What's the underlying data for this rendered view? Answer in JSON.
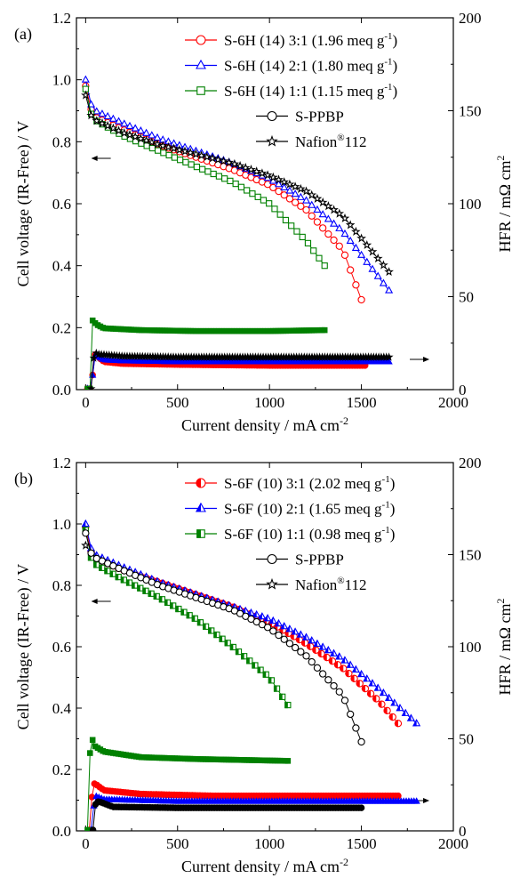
{
  "chart_data": [
    {
      "type": "line",
      "panel_label": "(a)",
      "xlabel": "Current density / mA cm",
      "xlabel_sup": "-2",
      "ylabel_left": "Cell voltage (IR-Free) / V",
      "ylabel_right": "HFR / mΩ cm",
      "ylabel_right_sup": "2",
      "xlim": [
        -50,
        2000
      ],
      "ylim_left": [
        0,
        1.2
      ],
      "ylim_right": [
        0,
        200
      ],
      "xticks": [
        "0",
        "500",
        "1000",
        "1500",
        "2000"
      ],
      "yticks_left": [
        "0.0",
        "0.2",
        "0.4",
        "0.6",
        "0.8",
        "1.0",
        "1.2"
      ],
      "yticks_right": [
        "0",
        "50",
        "100",
        "150",
        "200"
      ],
      "legend_position": "top-right",
      "series": [
        {
          "name": "S-6H (14) 3:1  (1.96 meq g",
          "name_sup": "-1",
          "name_end": ")",
          "color": "#ff0000",
          "marker": "circle-open",
          "polarization": [
            [
              0,
              0.98
            ],
            [
              10,
              0.93
            ],
            [
              50,
              0.88
            ],
            [
              200,
              0.84
            ],
            [
              400,
              0.79
            ],
            [
              600,
              0.75
            ],
            [
              800,
              0.71
            ],
            [
              1000,
              0.66
            ],
            [
              1200,
              0.58
            ],
            [
              1400,
              0.45
            ],
            [
              1500,
              0.29
            ]
          ],
          "hfr": [
            [
              10,
              0.5
            ],
            [
              30,
              0.5
            ],
            [
              50,
              19
            ],
            [
              100,
              15
            ],
            [
              200,
              14
            ],
            [
              500,
              13.5
            ],
            [
              1000,
              13
            ],
            [
              1520,
              13
            ]
          ]
        },
        {
          "name": "S-6H (14) 2:1  (1.80 meq g",
          "name_sup": "-1",
          "name_end": ")",
          "color": "#0000ff",
          "marker": "triangle-open",
          "polarization": [
            [
              0,
              1.0
            ],
            [
              10,
              0.94
            ],
            [
              50,
              0.9
            ],
            [
              200,
              0.86
            ],
            [
              400,
              0.81
            ],
            [
              600,
              0.77
            ],
            [
              800,
              0.73
            ],
            [
              1000,
              0.68
            ],
            [
              1200,
              0.61
            ],
            [
              1400,
              0.51
            ],
            [
              1650,
              0.32
            ]
          ],
          "hfr": [
            [
              10,
              0.5
            ],
            [
              30,
              0.5
            ],
            [
              50,
              18.5
            ],
            [
              100,
              16
            ],
            [
              200,
              15.5
            ],
            [
              500,
              15
            ],
            [
              1000,
              15
            ],
            [
              1650,
              15
            ]
          ]
        },
        {
          "name": "S-6H (14) 1:1  (1.15 meq g",
          "name_sup": "-1",
          "name_end": ")",
          "color": "#008000",
          "marker": "square-open",
          "polarization": [
            [
              0,
              0.97
            ],
            [
              10,
              0.91
            ],
            [
              50,
              0.87
            ],
            [
              200,
              0.82
            ],
            [
              400,
              0.77
            ],
            [
              600,
              0.72
            ],
            [
              800,
              0.67
            ],
            [
              1000,
              0.6
            ],
            [
              1200,
              0.48
            ],
            [
              1300,
              0.4
            ]
          ],
          "hfr": [
            [
              10,
              0.5
            ],
            [
              25,
              0.5
            ],
            [
              30,
              38
            ],
            [
              60,
              35
            ],
            [
              100,
              33
            ],
            [
              300,
              32
            ],
            [
              600,
              31.5
            ],
            [
              1000,
              31.5
            ],
            [
              1300,
              32
            ]
          ]
        },
        {
          "name": "S-PPBP",
          "color": "#000000",
          "marker": "circle-open",
          "polarization": [],
          "hfr": []
        },
        {
          "name": "Nafion",
          "name_sup": "®",
          "name_end": "112",
          "color": "#000000",
          "marker": "star-open",
          "polarization": [
            [
              0,
              0.95
            ],
            [
              10,
              0.9
            ],
            [
              50,
              0.87
            ],
            [
              200,
              0.83
            ],
            [
              400,
              0.79
            ],
            [
              600,
              0.76
            ],
            [
              800,
              0.73
            ],
            [
              1000,
              0.69
            ],
            [
              1200,
              0.64
            ],
            [
              1400,
              0.56
            ],
            [
              1650,
              0.38
            ]
          ],
          "hfr": [
            [
              30,
              0.5
            ],
            [
              40,
              15
            ],
            [
              50,
              20
            ],
            [
              70,
              19
            ],
            [
              200,
              18
            ],
            [
              500,
              17.5
            ],
            [
              1000,
              17.5
            ],
            [
              1650,
              17.5
            ]
          ]
        }
      ]
    },
    {
      "type": "line",
      "panel_label": "(b)",
      "xlabel": "Current density / mA cm",
      "xlabel_sup": "-2",
      "ylabel_left": "Cell voltage (IR-Free) / V",
      "ylabel_right": "HFR / mΩ cm",
      "ylabel_right_sup": "2",
      "xlim": [
        -50,
        2000
      ],
      "ylim_left": [
        0,
        1.2
      ],
      "ylim_right": [
        0,
        200
      ],
      "xticks": [
        "0",
        "500",
        "1000",
        "1500",
        "2000"
      ],
      "yticks_left": [
        "0.0",
        "0.2",
        "0.4",
        "0.6",
        "0.8",
        "1.0",
        "1.2"
      ],
      "yticks_right": [
        "0",
        "50",
        "100",
        "150",
        "200"
      ],
      "legend_position": "top-right",
      "series": [
        {
          "name": "S-6F (10) 3:1  (2.02 meq g",
          "name_sup": "-1",
          "name_end": ")",
          "color": "#ff0000",
          "marker": "circle-half",
          "polarization": [
            [
              0,
              0.99
            ],
            [
              10,
              0.93
            ],
            [
              50,
              0.89
            ],
            [
              200,
              0.85
            ],
            [
              400,
              0.81
            ],
            [
              600,
              0.77
            ],
            [
              800,
              0.73
            ],
            [
              1000,
              0.68
            ],
            [
              1200,
              0.61
            ],
            [
              1400,
              0.53
            ],
            [
              1600,
              0.42
            ],
            [
              1700,
              0.35
            ]
          ],
          "hfr": [
            [
              20,
              0.5
            ],
            [
              40,
              26
            ],
            [
              60,
              25
            ],
            [
              100,
              22
            ],
            [
              300,
              20
            ],
            [
              700,
              19
            ],
            [
              1200,
              19
            ],
            [
              1700,
              19
            ]
          ]
        },
        {
          "name": "S-6F (10) 2:1  (1.65 meq g",
          "name_sup": "-1",
          "name_end": ")",
          "color": "#0000ff",
          "marker": "triangle-half",
          "polarization": [
            [
              0,
              1.0
            ],
            [
              10,
              0.94
            ],
            [
              50,
              0.9
            ],
            [
              200,
              0.86
            ],
            [
              400,
              0.81
            ],
            [
              600,
              0.77
            ],
            [
              800,
              0.73
            ],
            [
              1000,
              0.69
            ],
            [
              1200,
              0.63
            ],
            [
              1400,
              0.56
            ],
            [
              1600,
              0.46
            ],
            [
              1800,
              0.35
            ]
          ],
          "hfr": [
            [
              30,
              0.5
            ],
            [
              50,
              19
            ],
            [
              100,
              17
            ],
            [
              500,
              16
            ],
            [
              1000,
              16
            ],
            [
              1800,
              16
            ]
          ]
        },
        {
          "name": "S-6F (10) 1:1  (0.98 meq g",
          "name_sup": "-1",
          "name_end": ")",
          "color": "#008000",
          "marker": "square-half",
          "polarization": [
            [
              0,
              0.98
            ],
            [
              10,
              0.91
            ],
            [
              50,
              0.87
            ],
            [
              200,
              0.82
            ],
            [
              400,
              0.76
            ],
            [
              600,
              0.69
            ],
            [
              800,
              0.6
            ],
            [
              1000,
              0.5
            ],
            [
              1100,
              0.41
            ]
          ],
          "hfr": [
            [
              10,
              0.5
            ],
            [
              20,
              0.5
            ],
            [
              25,
              53
            ],
            [
              50,
              46
            ],
            [
              100,
              43
            ],
            [
              300,
              40
            ],
            [
              600,
              39
            ],
            [
              1100,
              38
            ]
          ]
        },
        {
          "name": "S-PPBP",
          "color": "#000000",
          "marker": "circle-open",
          "polarization": [
            [
              0,
              0.97
            ],
            [
              10,
              0.92
            ],
            [
              50,
              0.89
            ],
            [
              200,
              0.85
            ],
            [
              400,
              0.8
            ],
            [
              600,
              0.76
            ],
            [
              800,
              0.72
            ],
            [
              1000,
              0.66
            ],
            [
              1200,
              0.57
            ],
            [
              1400,
              0.44
            ],
            [
              1500,
              0.29
            ]
          ],
          "hfr": [
            [
              40,
              0.5
            ],
            [
              50,
              14
            ],
            [
              70,
              16
            ],
            [
              150,
              13
            ],
            [
              500,
              12.5
            ],
            [
              1000,
              12.5
            ],
            [
              1500,
              12.5
            ]
          ]
        },
        {
          "name": "Nafion",
          "name_sup": "®",
          "name_end": "112",
          "color": "#000000",
          "marker": "star-open",
          "polarization": [
            [
              0,
              0.93
            ]
          ],
          "hfr": []
        }
      ]
    }
  ]
}
